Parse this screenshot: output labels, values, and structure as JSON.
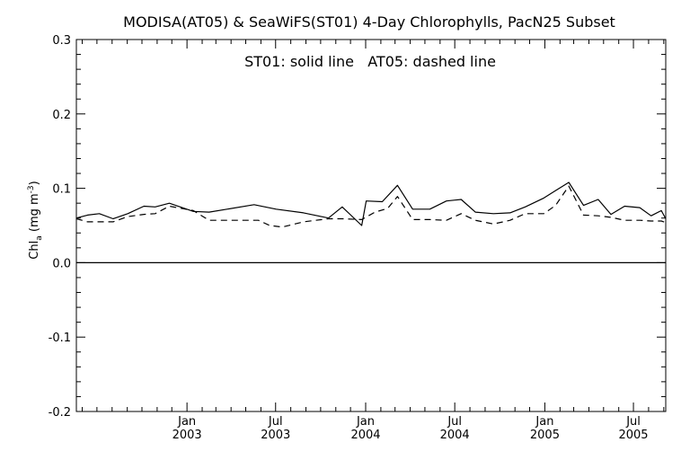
{
  "chart_data": {
    "type": "line",
    "title": "MODISA(AT05) & SeaWiFS(ST01) 4-Day Chlorophylls, PacN25 Subset",
    "annotation": "ST01: solid line   AT05: dashed line",
    "ylabel_main": "Chl",
    "ylabel_sub": "a",
    "ylabel_units": " (mg m",
    "ylabel_sup": "-3",
    "ylabel_close": ")",
    "xlabel": "",
    "ylim": [
      -0.2,
      0.3
    ],
    "xlim": [
      "2002-05-20",
      "2005-09-05"
    ],
    "y_ticks": [
      {
        "value": 0.3,
        "label": "0.3"
      },
      {
        "value": 0.2,
        "label": "0.2"
      },
      {
        "value": 0.1,
        "label": "0.1"
      },
      {
        "value": 0.0,
        "label": "0.0"
      },
      {
        "value": -0.1,
        "label": "-0.1"
      },
      {
        "value": -0.2,
        "label": "-0.2"
      }
    ],
    "x_ticks": [
      {
        "date": "2003-01-01",
        "month": "Jan",
        "year": "2003"
      },
      {
        "date": "2003-07-01",
        "month": "Jul",
        "year": "2003"
      },
      {
        "date": "2004-01-01",
        "month": "Jan",
        "year": "2004"
      },
      {
        "date": "2004-07-01",
        "month": "Jul",
        "year": "2004"
      },
      {
        "date": "2005-01-01",
        "month": "Jan",
        "year": "2005"
      },
      {
        "date": "2005-07-01",
        "month": "Jul",
        "year": "2005"
      }
    ],
    "zero_line": 0.0,
    "grid": false,
    "series": [
      {
        "name": "ST01",
        "style": "solid",
        "color": "#000000",
        "points": [
          [
            "2002-05-20",
            0.06
          ],
          [
            "2002-06-12",
            0.064
          ],
          [
            "2002-07-06",
            0.066
          ],
          [
            "2002-08-03",
            0.059
          ],
          [
            "2002-09-02",
            0.066
          ],
          [
            "2002-10-05",
            0.076
          ],
          [
            "2002-10-28",
            0.075
          ],
          [
            "2002-11-26",
            0.08
          ],
          [
            "2003-01-14",
            0.069
          ],
          [
            "2003-02-15",
            0.068
          ],
          [
            "2003-03-24",
            0.072
          ],
          [
            "2003-05-18",
            0.078
          ],
          [
            "2003-07-02",
            0.072
          ],
          [
            "2003-08-27",
            0.067
          ],
          [
            "2003-10-17",
            0.06
          ],
          [
            "2003-11-14",
            0.075
          ],
          [
            "2003-12-24",
            0.05
          ],
          [
            "2004-01-02",
            0.083
          ],
          [
            "2004-02-04",
            0.082
          ],
          [
            "2004-03-06",
            0.104
          ],
          [
            "2004-04-06",
            0.072
          ],
          [
            "2004-05-11",
            0.072
          ],
          [
            "2004-06-14",
            0.083
          ],
          [
            "2004-07-14",
            0.085
          ],
          [
            "2004-08-12",
            0.068
          ],
          [
            "2004-09-18",
            0.066
          ],
          [
            "2004-10-22",
            0.067
          ],
          [
            "2004-11-22",
            0.075
          ],
          [
            "2004-12-30",
            0.087
          ],
          [
            "2005-01-23",
            0.097
          ],
          [
            "2005-02-19",
            0.108
          ],
          [
            "2005-03-21",
            0.077
          ],
          [
            "2005-04-20",
            0.085
          ],
          [
            "2005-05-16",
            0.065
          ],
          [
            "2005-06-13",
            0.076
          ],
          [
            "2005-07-14",
            0.074
          ],
          [
            "2005-08-06",
            0.063
          ],
          [
            "2005-08-27",
            0.07
          ],
          [
            "2005-09-05",
            0.059
          ]
        ]
      },
      {
        "name": "AT05",
        "style": "dashed",
        "color": "#000000",
        "points": [
          [
            "2002-05-20",
            0.059
          ],
          [
            "2002-06-12",
            0.055
          ],
          [
            "2002-07-15",
            0.055
          ],
          [
            "2002-08-03",
            0.055
          ],
          [
            "2002-09-02",
            0.062
          ],
          [
            "2002-10-05",
            0.065
          ],
          [
            "2002-10-28",
            0.066
          ],
          [
            "2002-11-26",
            0.076
          ],
          [
            "2003-01-14",
            0.07
          ],
          [
            "2003-02-15",
            0.057
          ],
          [
            "2003-04-20",
            0.057
          ],
          [
            "2003-05-27",
            0.057
          ],
          [
            "2003-06-19",
            0.05
          ],
          [
            "2003-07-15",
            0.048
          ],
          [
            "2003-08-27",
            0.055
          ],
          [
            "2003-10-17",
            0.059
          ],
          [
            "2003-11-14",
            0.059
          ],
          [
            "2003-12-24",
            0.058
          ],
          [
            "2004-01-20",
            0.068
          ],
          [
            "2004-02-15",
            0.073
          ],
          [
            "2004-03-06",
            0.089
          ],
          [
            "2004-04-06",
            0.058
          ],
          [
            "2004-05-11",
            0.058
          ],
          [
            "2004-06-14",
            0.057
          ],
          [
            "2004-07-14",
            0.066
          ],
          [
            "2004-08-12",
            0.057
          ],
          [
            "2004-09-18",
            0.052
          ],
          [
            "2004-10-22",
            0.057
          ],
          [
            "2004-11-22",
            0.066
          ],
          [
            "2004-12-30",
            0.066
          ],
          [
            "2005-01-23",
            0.077
          ],
          [
            "2005-02-19",
            0.103
          ],
          [
            "2005-03-21",
            0.064
          ],
          [
            "2005-04-20",
            0.063
          ],
          [
            "2005-05-16",
            0.061
          ],
          [
            "2005-06-13",
            0.057
          ],
          [
            "2005-07-14",
            0.057
          ],
          [
            "2005-08-06",
            0.056
          ],
          [
            "2005-08-27",
            0.056
          ],
          [
            "2005-09-05",
            0.054
          ]
        ]
      }
    ]
  }
}
